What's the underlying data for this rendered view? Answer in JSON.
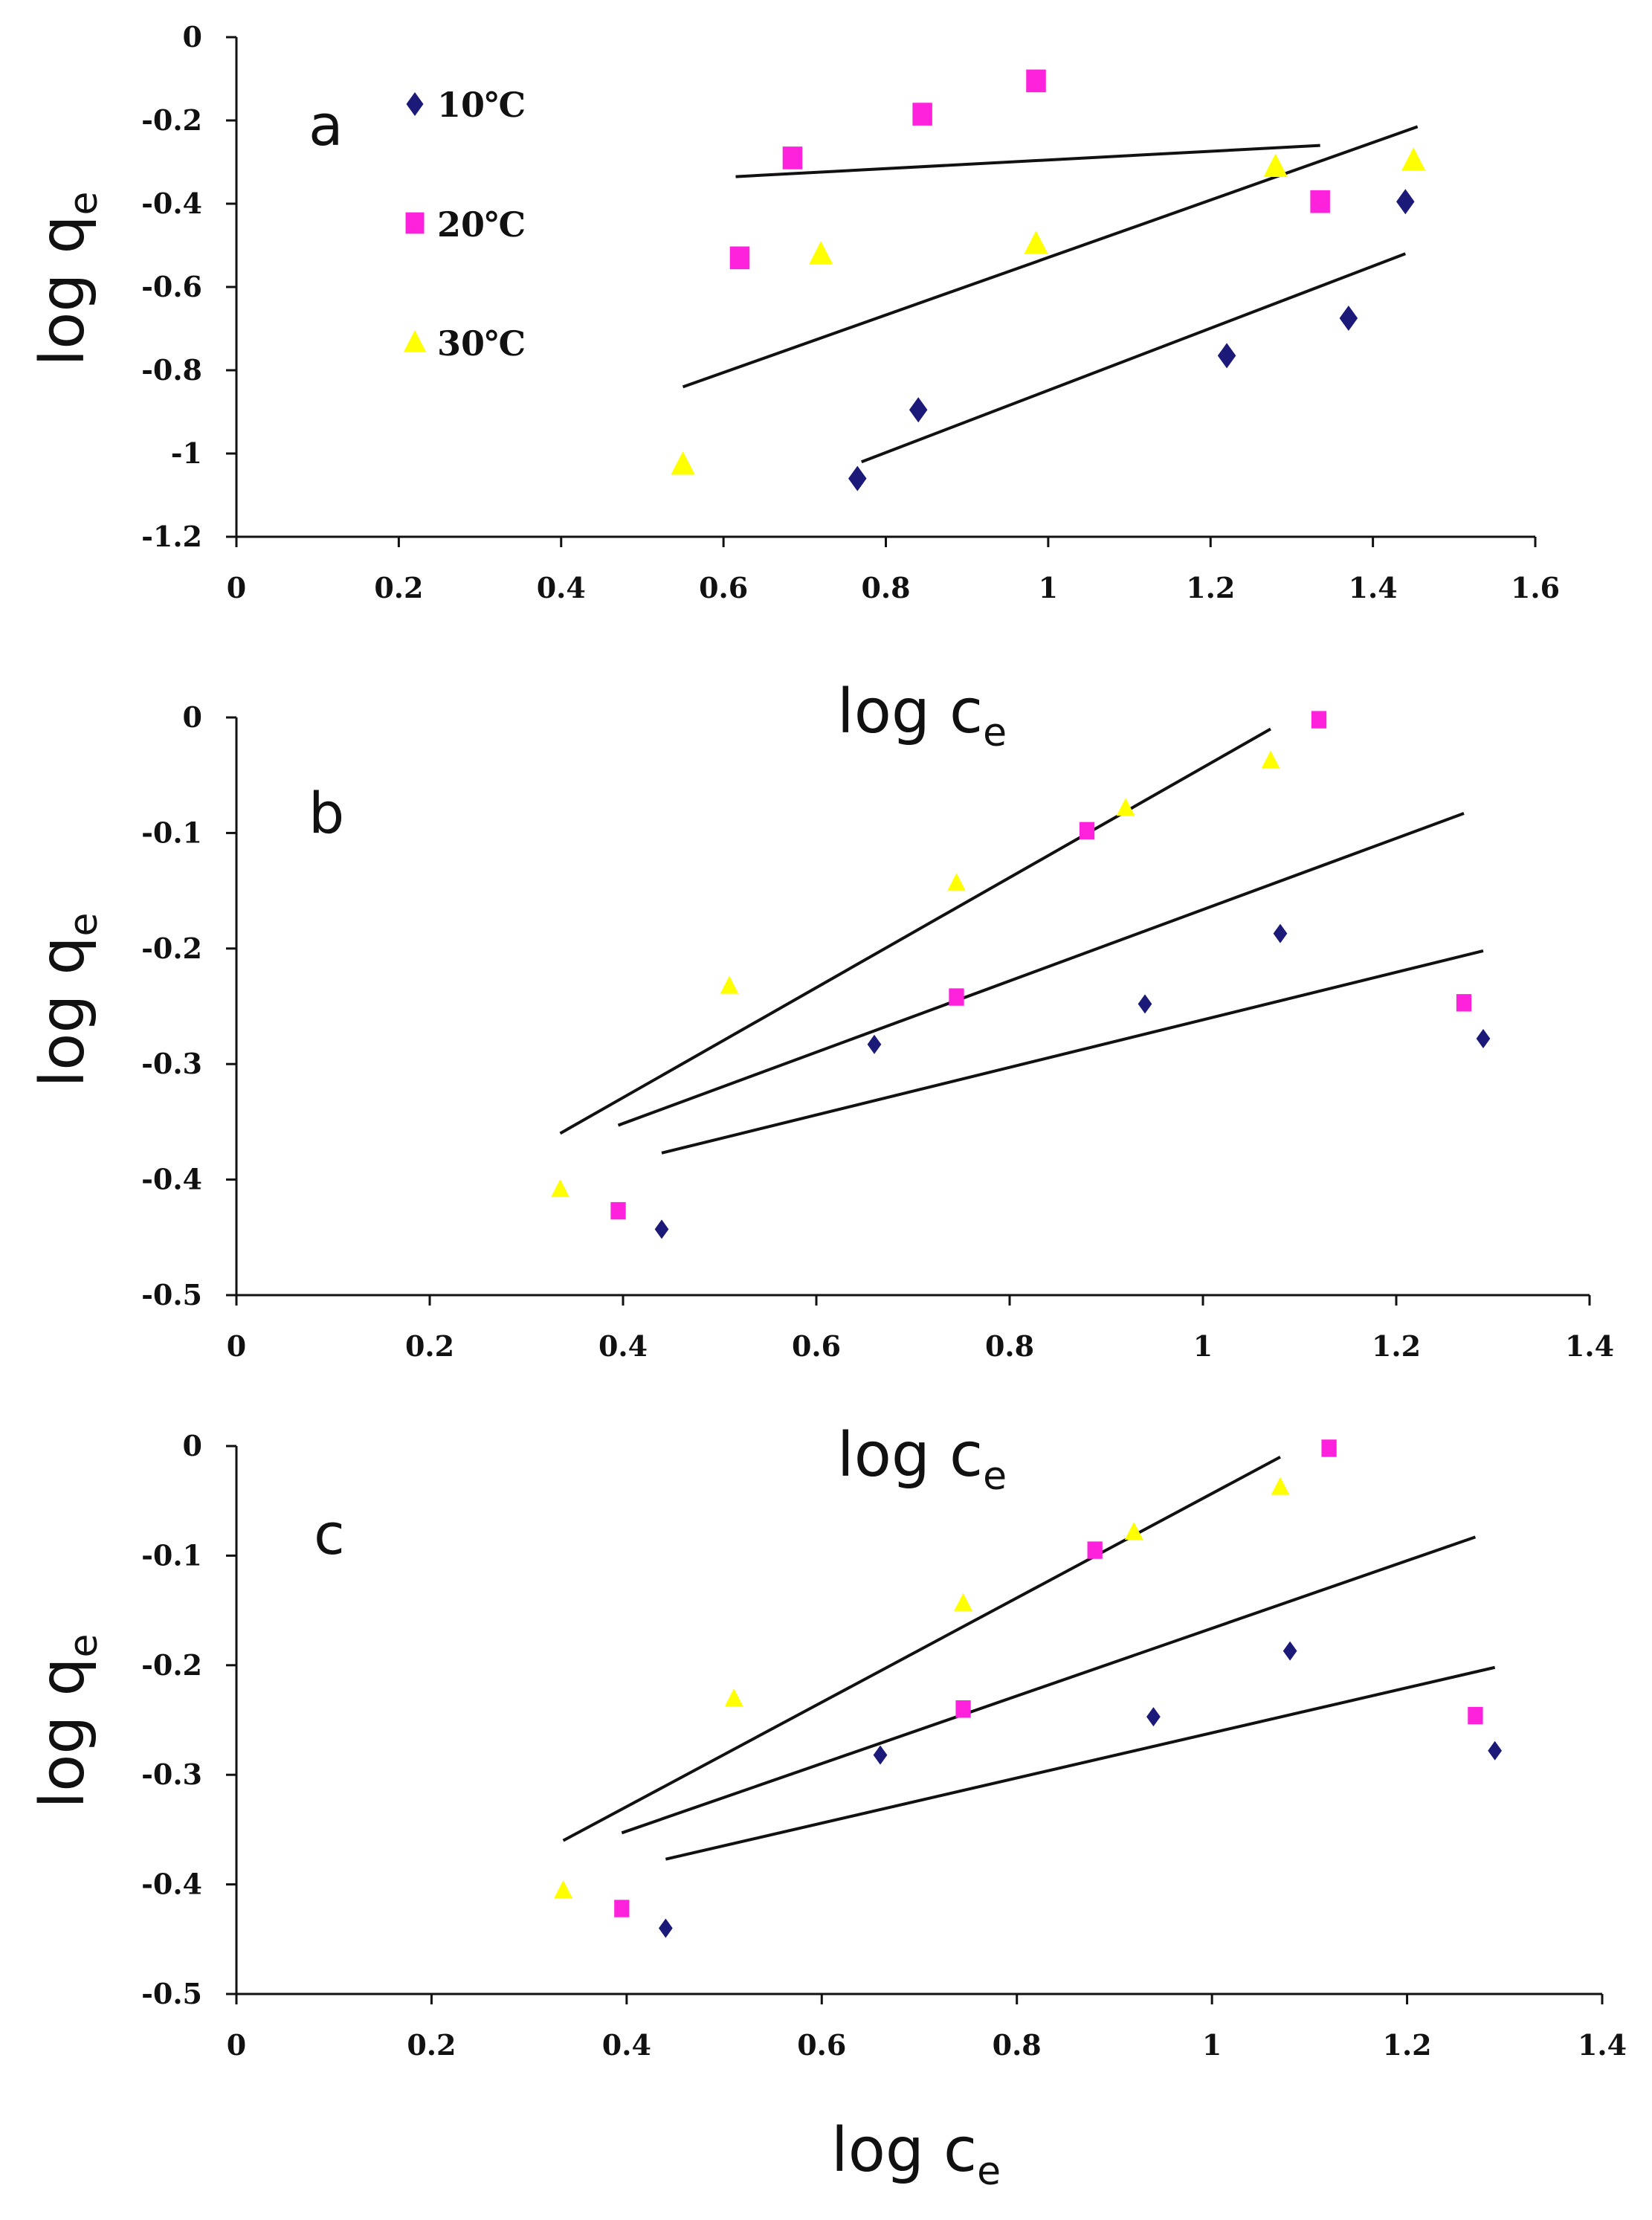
{
  "colors": {
    "t10": "#1c1a78",
    "t20": "#ff22dd",
    "t30": "#ffff00",
    "line": "#111111",
    "axis": "#111111"
  },
  "legend": [
    {
      "label": "10℃",
      "marker": "diamond",
      "color_key": "t10"
    },
    {
      "label": "20℃",
      "marker": "square",
      "color_key": "t20"
    },
    {
      "label": "30℃",
      "marker": "triangle",
      "color_key": "t30"
    }
  ],
  "chart_data": [
    {
      "type": "scatter",
      "panel": "a",
      "xlabel": "log c",
      "xlabel_sub": "e",
      "ylabel": "log q",
      "ylabel_sub": "e",
      "xlim": [
        0,
        1.6
      ],
      "ylim": [
        -1.2,
        0
      ],
      "xticks": [
        "0",
        "0.2",
        "0.4",
        "0.6",
        "0.8",
        "1",
        "1.2",
        "1.4",
        "1.6"
      ],
      "xtick_values": [
        0,
        0.2,
        0.4,
        0.6,
        0.8,
        1,
        1.2,
        1.4,
        1.6
      ],
      "yticks": [
        "0",
        "-0.2",
        "-0.4",
        "-0.6",
        "-0.8",
        "-1",
        "-1.2"
      ],
      "ytick_values": [
        0,
        -0.2,
        -0.4,
        -0.6,
        -0.8,
        -1,
        -1.2
      ],
      "legend_position": "top-left",
      "series": [
        {
          "name": "10℃",
          "x": [
            0.765,
            0.84,
            1.22,
            1.37,
            1.44
          ],
          "y": [
            -1.06,
            -0.895,
            -0.765,
            -0.675,
            -0.395
          ]
        },
        {
          "name": "20℃",
          "x": [
            0.62,
            0.685,
            0.845,
            0.985,
            1.335
          ],
          "y": [
            -0.53,
            -0.29,
            -0.185,
            -0.105,
            -0.395
          ]
        },
        {
          "name": "30℃",
          "x": [
            0.55,
            0.72,
            0.985,
            1.28,
            1.45
          ],
          "y": [
            -1.025,
            -0.52,
            -0.495,
            -0.31,
            -0.295
          ]
        }
      ],
      "fit_lines": [
        {
          "x": [
            0.615,
            1.335
          ],
          "y": [
            -0.335,
            -0.26
          ]
        },
        {
          "x": [
            0.55,
            1.455
          ],
          "y": [
            -0.84,
            -0.215
          ]
        },
        {
          "x": [
            0.77,
            1.44
          ],
          "y": [
            -1.02,
            -0.52
          ]
        }
      ]
    },
    {
      "type": "scatter",
      "panel": "b",
      "xlabel": "log c",
      "xlabel_sub": "e",
      "ylabel": "log q",
      "ylabel_sub": "e",
      "xlim": [
        0,
        1.4
      ],
      "ylim": [
        -0.5,
        0
      ],
      "xticks": [
        "0",
        "0.2",
        "0.4",
        "0.6",
        "0.8",
        "1",
        "1.2",
        "1.4"
      ],
      "xtick_values": [
        0,
        0.2,
        0.4,
        0.6,
        0.8,
        1,
        1.2,
        1.4
      ],
      "yticks": [
        "0",
        "-0.1",
        "-0.2",
        "-0.3",
        "-0.4",
        "-0.5"
      ],
      "ytick_values": [
        0,
        -0.1,
        -0.2,
        -0.3,
        -0.4,
        -0.5
      ],
      "series": [
        {
          "name": "10℃",
          "x": [
            0.44,
            0.66,
            0.94,
            1.08,
            1.29
          ],
          "y": [
            -0.443,
            -0.283,
            -0.248,
            -0.187,
            -0.278
          ]
        },
        {
          "name": "20℃",
          "x": [
            0.395,
            0.745,
            0.88,
            1.12,
            1.27
          ],
          "y": [
            -0.427,
            -0.242,
            -0.098,
            -0.002,
            -0.247
          ]
        },
        {
          "name": "30℃",
          "x": [
            0.335,
            0.51,
            0.745,
            0.92,
            1.07
          ],
          "y": [
            -0.408,
            -0.232,
            -0.143,
            -0.078,
            -0.037
          ]
        }
      ],
      "fit_lines": [
        {
          "x": [
            0.335,
            1.07
          ],
          "y": [
            -0.36,
            -0.01
          ]
        },
        {
          "x": [
            0.395,
            1.27
          ],
          "y": [
            -0.353,
            -0.083
          ]
        },
        {
          "x": [
            0.44,
            1.29
          ],
          "y": [
            -0.377,
            -0.202
          ]
        }
      ]
    },
    {
      "type": "scatter",
      "panel": "c",
      "xlabel": "log c",
      "xlabel_sub": "e",
      "ylabel": "log q",
      "ylabel_sub": "e",
      "xlim": [
        0,
        1.4
      ],
      "ylim": [
        -0.5,
        0
      ],
      "xticks": [
        "0",
        "0.2",
        "0.4",
        "0.6",
        "0.8",
        "1",
        "1.2",
        "1.4"
      ],
      "xtick_values": [
        0,
        0.2,
        0.4,
        0.6,
        0.8,
        1,
        1.2,
        1.4
      ],
      "yticks": [
        "0",
        "-0.1",
        "-0.2",
        "-0.3",
        "-0.4",
        "-0.5"
      ],
      "ytick_values": [
        0,
        -0.1,
        -0.2,
        -0.3,
        -0.4,
        -0.5
      ],
      "series": [
        {
          "name": "10℃",
          "x": [
            0.44,
            0.66,
            0.94,
            1.08,
            1.29
          ],
          "y": [
            -0.44,
            -0.282,
            -0.247,
            -0.187,
            -0.278
          ]
        },
        {
          "name": "20℃",
          "x": [
            0.395,
            0.745,
            0.88,
            1.12,
            1.27
          ],
          "y": [
            -0.422,
            -0.24,
            -0.095,
            -0.002,
            -0.246
          ]
        },
        {
          "name": "30℃",
          "x": [
            0.335,
            0.51,
            0.745,
            0.92,
            1.07
          ],
          "y": [
            -0.405,
            -0.23,
            -0.143,
            -0.078,
            -0.037
          ]
        }
      ],
      "fit_lines": [
        {
          "x": [
            0.335,
            1.07
          ],
          "y": [
            -0.36,
            -0.01
          ]
        },
        {
          "x": [
            0.395,
            1.27
          ],
          "y": [
            -0.353,
            -0.083
          ]
        },
        {
          "x": [
            0.44,
            1.29
          ],
          "y": [
            -0.377,
            -0.202
          ]
        }
      ]
    }
  ]
}
